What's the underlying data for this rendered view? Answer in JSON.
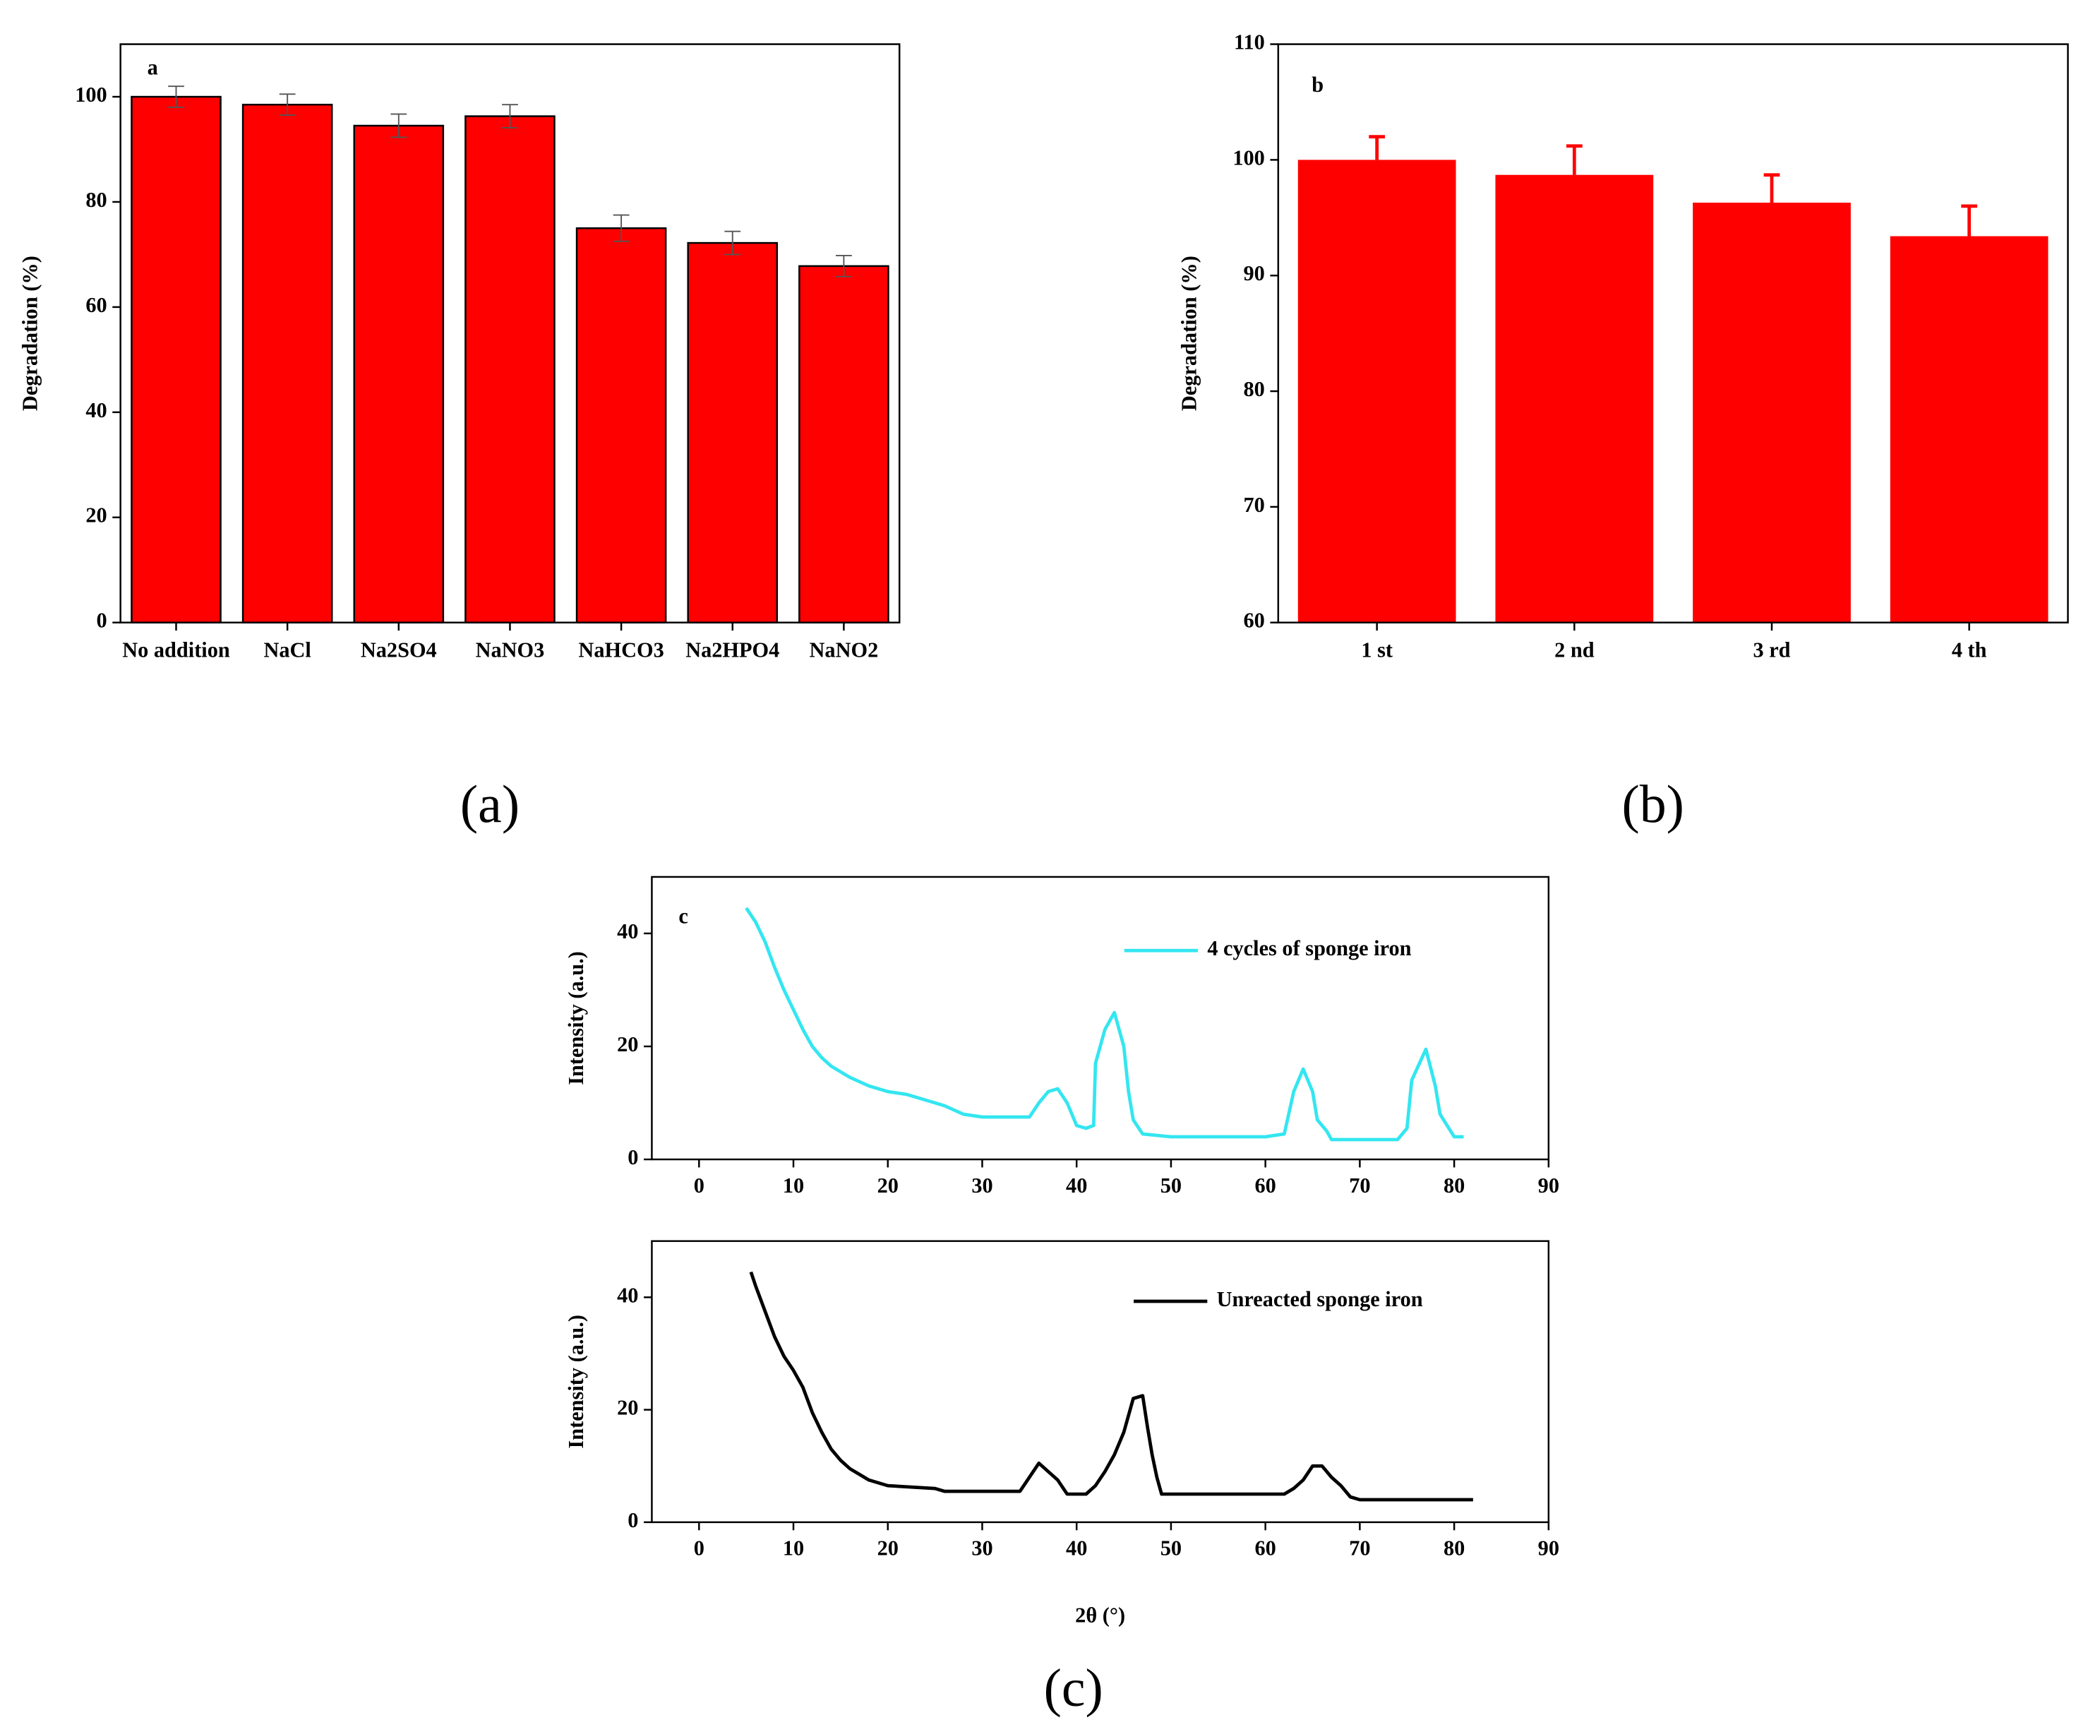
{
  "chart_data": [
    {
      "type": "bar",
      "label": "a",
      "caption": "(a)",
      "ylabel": "Degradation (%)",
      "categories": [
        "No addition",
        "NaCl",
        "Na2SO4",
        "NaNO3",
        "NaHCO3",
        "Na2HPO4",
        "NaNO2"
      ],
      "values": [
        100,
        98.5,
        94.5,
        96.3,
        75,
        72.2,
        67.8
      ],
      "errors": [
        2,
        2,
        2.2,
        2.2,
        2.5,
        2.2,
        2
      ],
      "color": "#ff0000",
      "error_color": "#555555",
      "error_both_sides": true,
      "ylim": [
        0,
        110
      ],
      "yticks": [
        0,
        20,
        40,
        60,
        80,
        100
      ]
    },
    {
      "type": "bar",
      "label": "b",
      "caption": "(b)",
      "ylabel": "Degradation (%)",
      "categories": [
        "1 st",
        "2 nd",
        "3 rd",
        "4 th"
      ],
      "values": [
        100,
        98.7,
        96.3,
        93.4
      ],
      "errors": [
        2,
        2.5,
        2.4,
        2.6
      ],
      "color": "#ff0000",
      "error_color": "#ff0000",
      "error_both_sides": false,
      "ylim": [
        60,
        110
      ],
      "yticks": [
        60,
        70,
        80,
        90,
        100,
        110
      ]
    },
    {
      "type": "line",
      "label": "c",
      "ylabel": "Intensity (a.u.)",
      "legend": "upper right",
      "xlim": [
        -5,
        90
      ],
      "xticks": [
        0,
        10,
        20,
        30,
        40,
        50,
        60,
        70,
        80,
        90
      ],
      "ylim": [
        0,
        50
      ],
      "yticks": [
        0,
        20,
        40
      ],
      "x": [
        5,
        6,
        7,
        8,
        9,
        10,
        11,
        12,
        13,
        14,
        15,
        16,
        18,
        20,
        22,
        24,
        26,
        28,
        30,
        35,
        36,
        37,
        38,
        39,
        40,
        41,
        41.8,
        42,
        43,
        44,
        45,
        45.5,
        46,
        47,
        50,
        55,
        60,
        62,
        63,
        64,
        65,
        65.5,
        66.5,
        67,
        70,
        74,
        75,
        75.5,
        77,
        78,
        78.5,
        80,
        81
      ],
      "series": [
        {
          "name": "4 cycles of sponge iron",
          "color": "#33e6f0",
          "values": [
            44.5,
            42,
            38.5,
            34,
            30,
            26.5,
            23,
            20,
            18,
            16.5,
            15.5,
            14.5,
            13,
            12,
            11.5,
            10.5,
            9.5,
            8,
            7.5,
            7.5,
            10,
            12,
            12.5,
            10,
            6,
            5.5,
            6,
            17,
            23,
            26,
            20,
            12,
            7,
            4.5,
            4,
            4,
            4,
            4.5,
            12,
            16,
            12,
            7,
            5,
            3.5,
            3.5,
            3.5,
            5.5,
            14,
            19.5,
            13,
            8,
            4,
            4
          ]
        }
      ]
    },
    {
      "type": "line",
      "caption": "(c)",
      "ylabel": "Intensity (a.u.)",
      "xlabel": "2θ (°)",
      "legend": "upper right",
      "xlim": [
        -5,
        90
      ],
      "xticks": [
        0,
        10,
        20,
        30,
        40,
        50,
        60,
        70,
        80,
        90
      ],
      "ylim": [
        0,
        50
      ],
      "yticks": [
        0,
        20,
        40
      ],
      "x": [
        5.5,
        6,
        7,
        8,
        9,
        10,
        11,
        12,
        13,
        14,
        15,
        16,
        17,
        18,
        19,
        20,
        25,
        26,
        30,
        34,
        35,
        36,
        37,
        38,
        39,
        41,
        42,
        43,
        44,
        45,
        46,
        47,
        47.5,
        48,
        48.5,
        49,
        55,
        62,
        63,
        64,
        65,
        66,
        67,
        68,
        69,
        70,
        82
      ],
      "series": [
        {
          "name": "Unreacted sponge iron",
          "color": "#000000",
          "values": [
            44.5,
            42,
            37.5,
            33,
            29.5,
            27,
            24,
            19.5,
            16,
            13,
            11,
            9.5,
            8.5,
            7.5,
            7,
            6.5,
            6,
            5.5,
            5.5,
            5.5,
            8,
            10.5,
            9,
            7.5,
            5,
            5,
            6.5,
            9,
            12,
            16,
            22,
            22.5,
            17,
            12,
            8,
            5,
            5,
            5,
            6,
            7.5,
            10,
            10,
            8,
            6.5,
            4.5,
            4,
            4
          ]
        }
      ]
    }
  ]
}
